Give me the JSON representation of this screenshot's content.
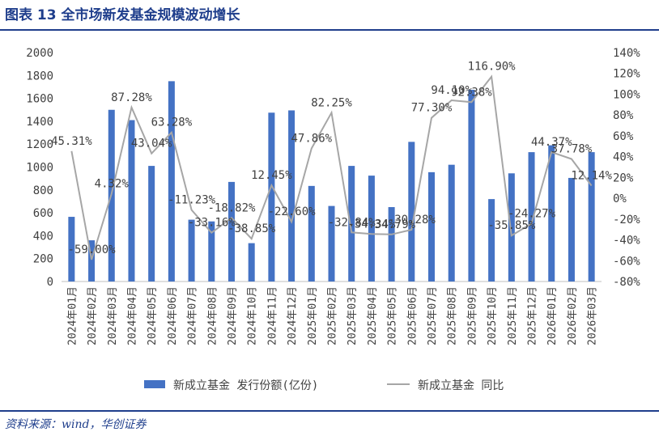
{
  "header": {
    "title": "图表 13  全市场新发基金规模波动增长"
  },
  "footer": {
    "source": "资料来源：wind，华创证券"
  },
  "chart_data": {
    "type": "bar",
    "categories": [
      "2024年01月",
      "2024年02月",
      "2024年03月",
      "2024年04月",
      "2024年05月",
      "2024年06月",
      "2024年07月",
      "2024年08月",
      "2024年09月",
      "2024年10月",
      "2024年11月",
      "2024年12月",
      "2025年01月",
      "2025年02月",
      "2025年03月",
      "2025年04月",
      "2025年05月",
      "2025年06月",
      "2025年07月",
      "2025年08月",
      "2025年09月",
      "2025年10月",
      "2025年11月",
      "2025年12月",
      "2026年01月",
      "2026年02月",
      "2026年03月"
    ],
    "series": [
      {
        "name": "新成立基金 发行份额(亿份)",
        "type": "bar",
        "axis": "left",
        "color": "#4472c4",
        "values": [
          565,
          360,
          1500,
          1410,
          1010,
          1750,
          540,
          525,
          870,
          335,
          1475,
          1495,
          835,
          660,
          1010,
          925,
          650,
          1220,
          955,
          1020,
          1675,
          720,
          945,
          1130,
          1190,
          905,
          1130
        ]
      },
      {
        "name": "新成立基金 同比",
        "type": "line",
        "axis": "right",
        "color": "#a6a6a6",
        "values": [
          45.31,
          -59.0,
          4.32,
          87.28,
          43.04,
          63.28,
          -11.23,
          -33.16,
          -18.82,
          -38.85,
          12.45,
          -22.6,
          47.86,
          82.25,
          -32.84,
          -34.34,
          -34.79,
          -30.28,
          77.3,
          94.1,
          92.38,
          116.9,
          -35.85,
          -24.27,
          44.37,
          37.78,
          12.14
        ]
      }
    ],
    "data_labels": [
      "45.31%",
      "-59.00%",
      "4.32%",
      "87.28%",
      "43.04%",
      "63.28%",
      "-11.23%",
      "-33.16%",
      "-18.82%",
      "-38.85%",
      "12.45%",
      "-22.60%",
      "47.86%",
      "82.25%",
      "-32.84%",
      "-34.34%",
      "-34.79%",
      "-30.28%",
      "77.30%",
      "94.10%",
      "92.38%",
      "116.90%",
      "-35.85%",
      "-24.27%",
      "44.37%",
      "37.78%",
      "12.14%"
    ],
    "y_left": {
      "min": 0,
      "max": 2000,
      "step": 200,
      "ticks": [
        "0",
        "200",
        "400",
        "600",
        "800",
        "1000",
        "1200",
        "1400",
        "1600",
        "1800",
        "2000"
      ]
    },
    "y_right": {
      "min": -80,
      "max": 140,
      "step": 20,
      "ticks": [
        "-80%",
        "-60%",
        "-40%",
        "-20%",
        "0%",
        "20%",
        "40%",
        "60%",
        "80%",
        "100%",
        "120%",
        "140%"
      ]
    },
    "legend_position": "bottom",
    "grid": false
  }
}
